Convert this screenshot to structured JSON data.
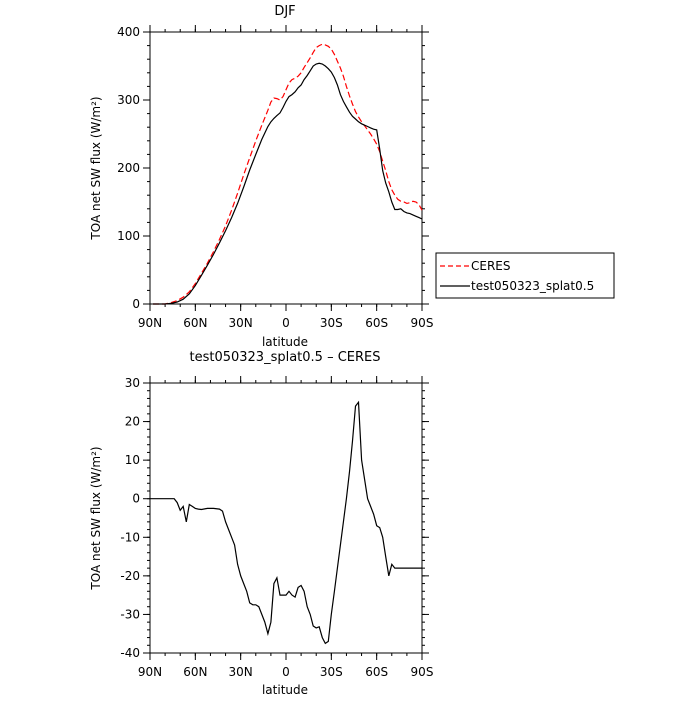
{
  "chart_data": [
    {
      "type": "line",
      "title": "DJF",
      "xlabel": "latitude",
      "ylabel": "TOA net SW flux (W/m²)",
      "xlim": [
        -90,
        90
      ],
      "ylim": [
        0,
        400
      ],
      "x_ticks": [
        {
          "value": -90,
          "label": "90N"
        },
        {
          "value": -60,
          "label": "60N"
        },
        {
          "value": -30,
          "label": "30N"
        },
        {
          "value": 0,
          "label": "0"
        },
        {
          "value": 30,
          "label": "30S"
        },
        {
          "value": 60,
          "label": "60S"
        },
        {
          "value": 90,
          "label": "90S"
        }
      ],
      "y_ticks": [
        0,
        100,
        200,
        300,
        400
      ],
      "legend_position": "right",
      "series": [
        {
          "name": "CERES",
          "color": "#ff0000",
          "dash": "dashed",
          "x": [
            -88,
            -84,
            -80,
            -76,
            -72,
            -68,
            -64,
            -60,
            -56,
            -52,
            -48,
            -44,
            -40,
            -36,
            -32,
            -28,
            -24,
            -20,
            -16,
            -12,
            -10,
            -8,
            -6,
            -4,
            -2,
            0,
            2,
            4,
            6,
            8,
            10,
            12,
            14,
            16,
            18,
            20,
            22,
            24,
            26,
            28,
            30,
            32,
            34,
            36,
            38,
            40,
            42,
            44,
            46,
            48,
            50,
            52,
            54,
            56,
            58,
            60,
            62,
            64,
            66,
            68,
            70,
            72,
            74,
            76,
            78,
            80,
            82,
            84,
            86,
            88,
            90
          ],
          "y": [
            0,
            0,
            0,
            2,
            5,
            10,
            18,
            30,
            45,
            60,
            77,
            95,
            115,
            138,
            163,
            190,
            215,
            240,
            263,
            285,
            297,
            303,
            302,
            300,
            305,
            315,
            325,
            330,
            332,
            335,
            340,
            348,
            355,
            362,
            370,
            377,
            380,
            382,
            381,
            379,
            375,
            367,
            357,
            347,
            335,
            320,
            306,
            294,
            283,
            275,
            268,
            262,
            256,
            250,
            243,
            235,
            224,
            210,
            196,
            180,
            168,
            160,
            154,
            151,
            150,
            148,
            149,
            151,
            150,
            146,
            138
          ]
        },
        {
          "name": "test050323_splat0.5",
          "color": "#000000",
          "dash": "solid",
          "x": [
            -88,
            -84,
            -80,
            -76,
            -72,
            -68,
            -64,
            -60,
            -56,
            -52,
            -48,
            -44,
            -40,
            -36,
            -32,
            -28,
            -24,
            -20,
            -16,
            -12,
            -10,
            -8,
            -6,
            -4,
            -2,
            0,
            2,
            4,
            6,
            8,
            10,
            12,
            14,
            16,
            18,
            20,
            22,
            24,
            26,
            28,
            30,
            32,
            34,
            36,
            38,
            40,
            42,
            44,
            46,
            48,
            50,
            52,
            54,
            56,
            58,
            60,
            62,
            64,
            66,
            68,
            70,
            72,
            74,
            76,
            78,
            80,
            82,
            84,
            86,
            88,
            90
          ],
          "y": [
            0,
            0,
            0,
            1,
            3,
            7,
            15,
            27,
            42,
            57,
            73,
            90,
            108,
            127,
            148,
            172,
            197,
            220,
            242,
            261,
            268,
            273,
            277,
            281,
            289,
            298,
            305,
            308,
            312,
            318,
            322,
            330,
            336,
            343,
            350,
            353,
            354,
            353,
            350,
            346,
            341,
            333,
            322,
            308,
            298,
            290,
            282,
            276,
            272,
            268,
            265,
            263,
            261,
            259,
            257,
            256,
            228,
            196,
            178,
            165,
            150,
            139,
            139,
            140,
            136,
            134,
            133,
            131,
            129,
            127,
            125
          ]
        }
      ]
    },
    {
      "type": "line",
      "title": "test050323_splat0.5 – CERES",
      "xlabel": "latitude",
      "ylabel": "TOA net SW flux (W/m²)",
      "xlim": [
        -90,
        90
      ],
      "ylim": [
        -40,
        30
      ],
      "x_ticks": [
        {
          "value": -90,
          "label": "90N"
        },
        {
          "value": -60,
          "label": "60N"
        },
        {
          "value": -30,
          "label": "30N"
        },
        {
          "value": 0,
          "label": "0"
        },
        {
          "value": 30,
          "label": "30S"
        },
        {
          "value": 60,
          "label": "60S"
        },
        {
          "value": 90,
          "label": "90S"
        }
      ],
      "y_ticks": [
        -40,
        -30,
        -20,
        -10,
        0,
        10,
        20,
        30
      ],
      "series": [
        {
          "color": "#000000",
          "dash": "solid",
          "x": [
            -90,
            -86,
            -82,
            -78,
            -74,
            -72,
            -70,
            -68,
            -66,
            -64,
            -62,
            -60,
            -58,
            -56,
            -52,
            -48,
            -44,
            -42,
            -40,
            -38,
            -36,
            -34,
            -32,
            -30,
            -28,
            -26,
            -24,
            -22,
            -20,
            -18,
            -16,
            -14,
            -12,
            -10,
            -8,
            -6,
            -4,
            -2,
            0,
            2,
            4,
            6,
            8,
            10,
            12,
            14,
            16,
            18,
            20,
            22,
            24,
            26,
            28,
            30,
            32,
            34,
            36,
            38,
            40,
            42,
            44,
            46,
            48,
            50,
            52,
            54,
            56,
            58,
            60,
            62,
            64,
            66,
            68,
            70,
            72,
            74,
            76,
            78,
            80,
            82,
            84,
            86,
            88,
            90
          ],
          "y": [
            0,
            0,
            0,
            0,
            0,
            -1,
            -3,
            -2,
            -6,
            -1.5,
            -2,
            -2.5,
            -2.7,
            -2.8,
            -2.5,
            -2.5,
            -2.7,
            -3.2,
            -6,
            -8,
            -10,
            -12,
            -17,
            -20,
            -22,
            -24,
            -27,
            -27.5,
            -27.5,
            -28,
            -30,
            -32,
            -35,
            -32,
            -22,
            -20.5,
            -25,
            -25,
            -25,
            -24,
            -25,
            -25.5,
            -23,
            -22.5,
            -24,
            -28,
            -30,
            -33,
            -33.5,
            -33.2,
            -36,
            -37.5,
            -37,
            -30,
            -24,
            -18,
            -12,
            -6,
            0,
            7,
            15,
            24,
            25,
            10,
            5,
            0,
            -2,
            -4,
            -7,
            -7.5,
            -10,
            -15,
            -20,
            -17,
            -18,
            -18,
            -18,
            -18,
            -18,
            -18,
            -18,
            -18,
            -18,
            -18
          ]
        }
      ]
    }
  ]
}
